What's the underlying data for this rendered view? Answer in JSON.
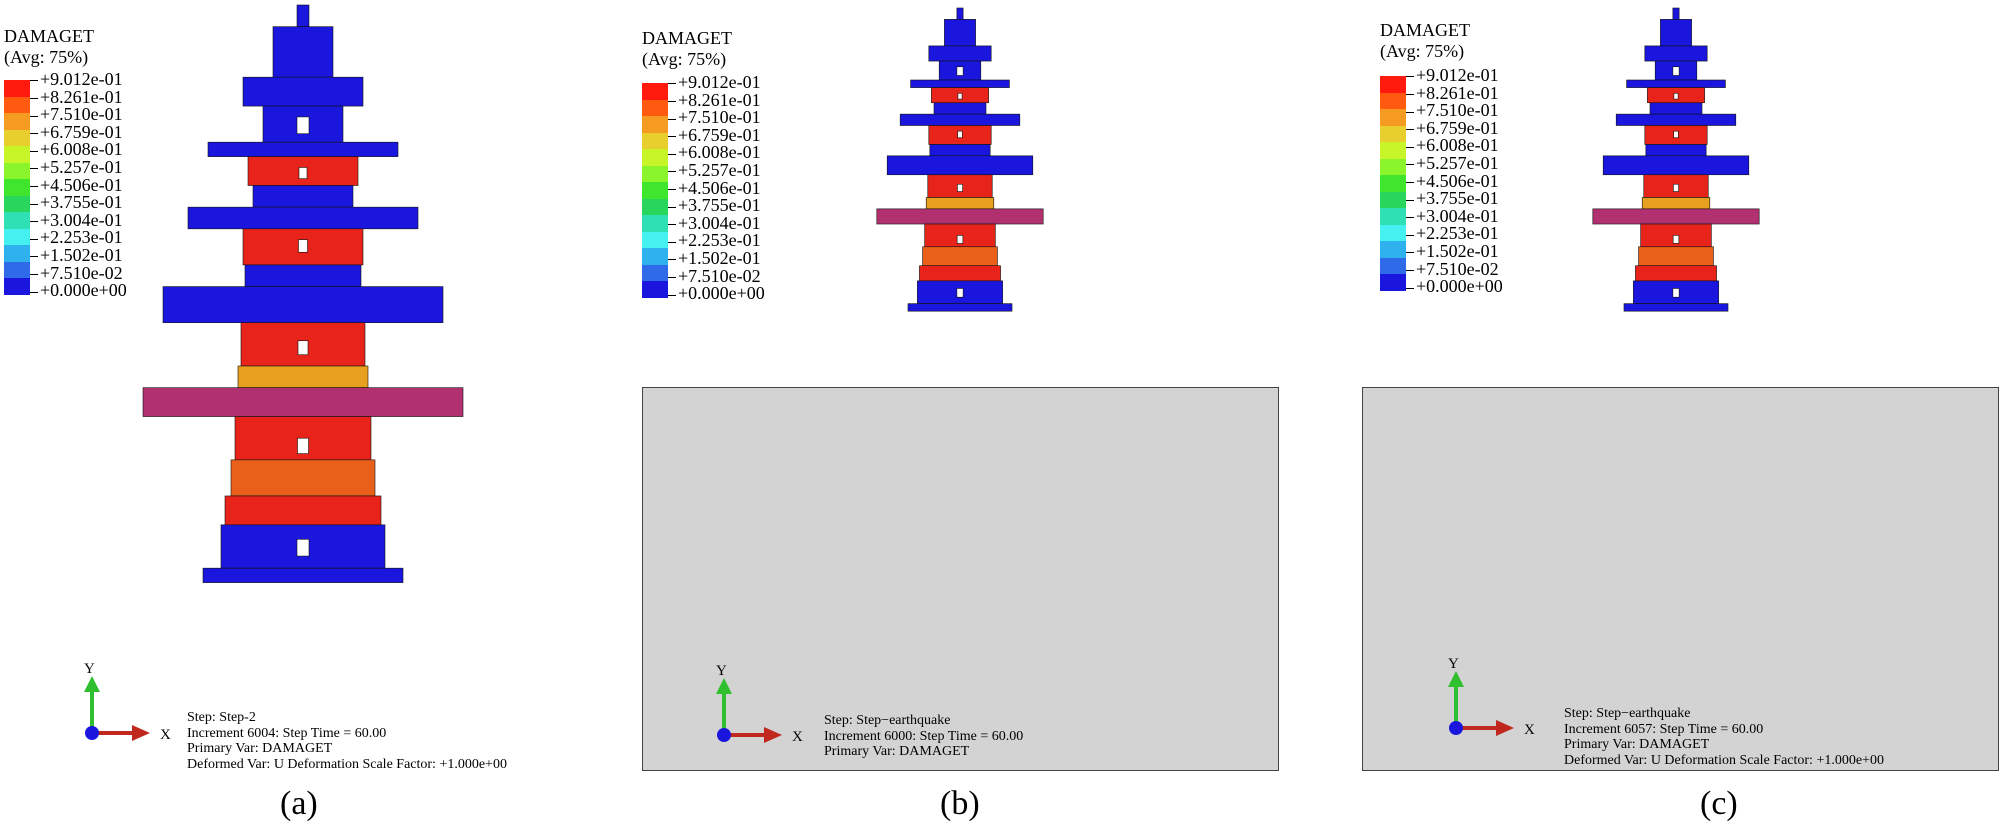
{
  "legend": {
    "title": "DAMAGET",
    "avg": "(Avg: 75%)",
    "values": [
      "+9.012e-01",
      "+8.261e-01",
      "+7.510e-01",
      "+6.759e-01",
      "+6.008e-01",
      "+5.257e-01",
      "+4.506e-01",
      "+3.755e-01",
      "+3.004e-01",
      "+2.253e-01",
      "+1.502e-01",
      "+7.510e-02",
      "+0.000e+00"
    ],
    "colors": [
      "#ff1a0d",
      "#ff5a10",
      "#f59b21",
      "#e8cf2d",
      "#c8f527",
      "#8af52a",
      "#40e62d",
      "#27d65a",
      "#2ee0b4",
      "#44f0f0",
      "#2fb1ee",
      "#2f6ae8",
      "#1a16dd"
    ]
  },
  "axis": {
    "x": "X",
    "y": "Y"
  },
  "panels": [
    {
      "caption": "(a)",
      "info": [
        "Step: Step-2",
        "Increment    6004: Step Time =      60.00",
        "Primary Var: DAMAGET",
        "Deformed Var: U   Deformation Scale Factor: +1.000e+00"
      ]
    },
    {
      "caption": "(b)",
      "info": [
        "Step: Step−earthquake",
        "Increment    6000: Step Time =      60.00",
        "Primary Var: DAMAGET"
      ]
    },
    {
      "caption": "(c)",
      "info": [
        "Step: Step−earthquake",
        "Increment    6057: Step Time =      60.00",
        "Primary Var: DAMAGET",
        "Deformed Var: U   Deformation Scale Factor: +1.000e+00"
      ]
    }
  ],
  "colors": {
    "damaged": "#e8231a",
    "intact": "#1a16dd",
    "ground": "#d3d3d3",
    "axis_x": "#c0281e",
    "axis_y": "#2fbf2f",
    "origin": "#1a16dd"
  }
}
